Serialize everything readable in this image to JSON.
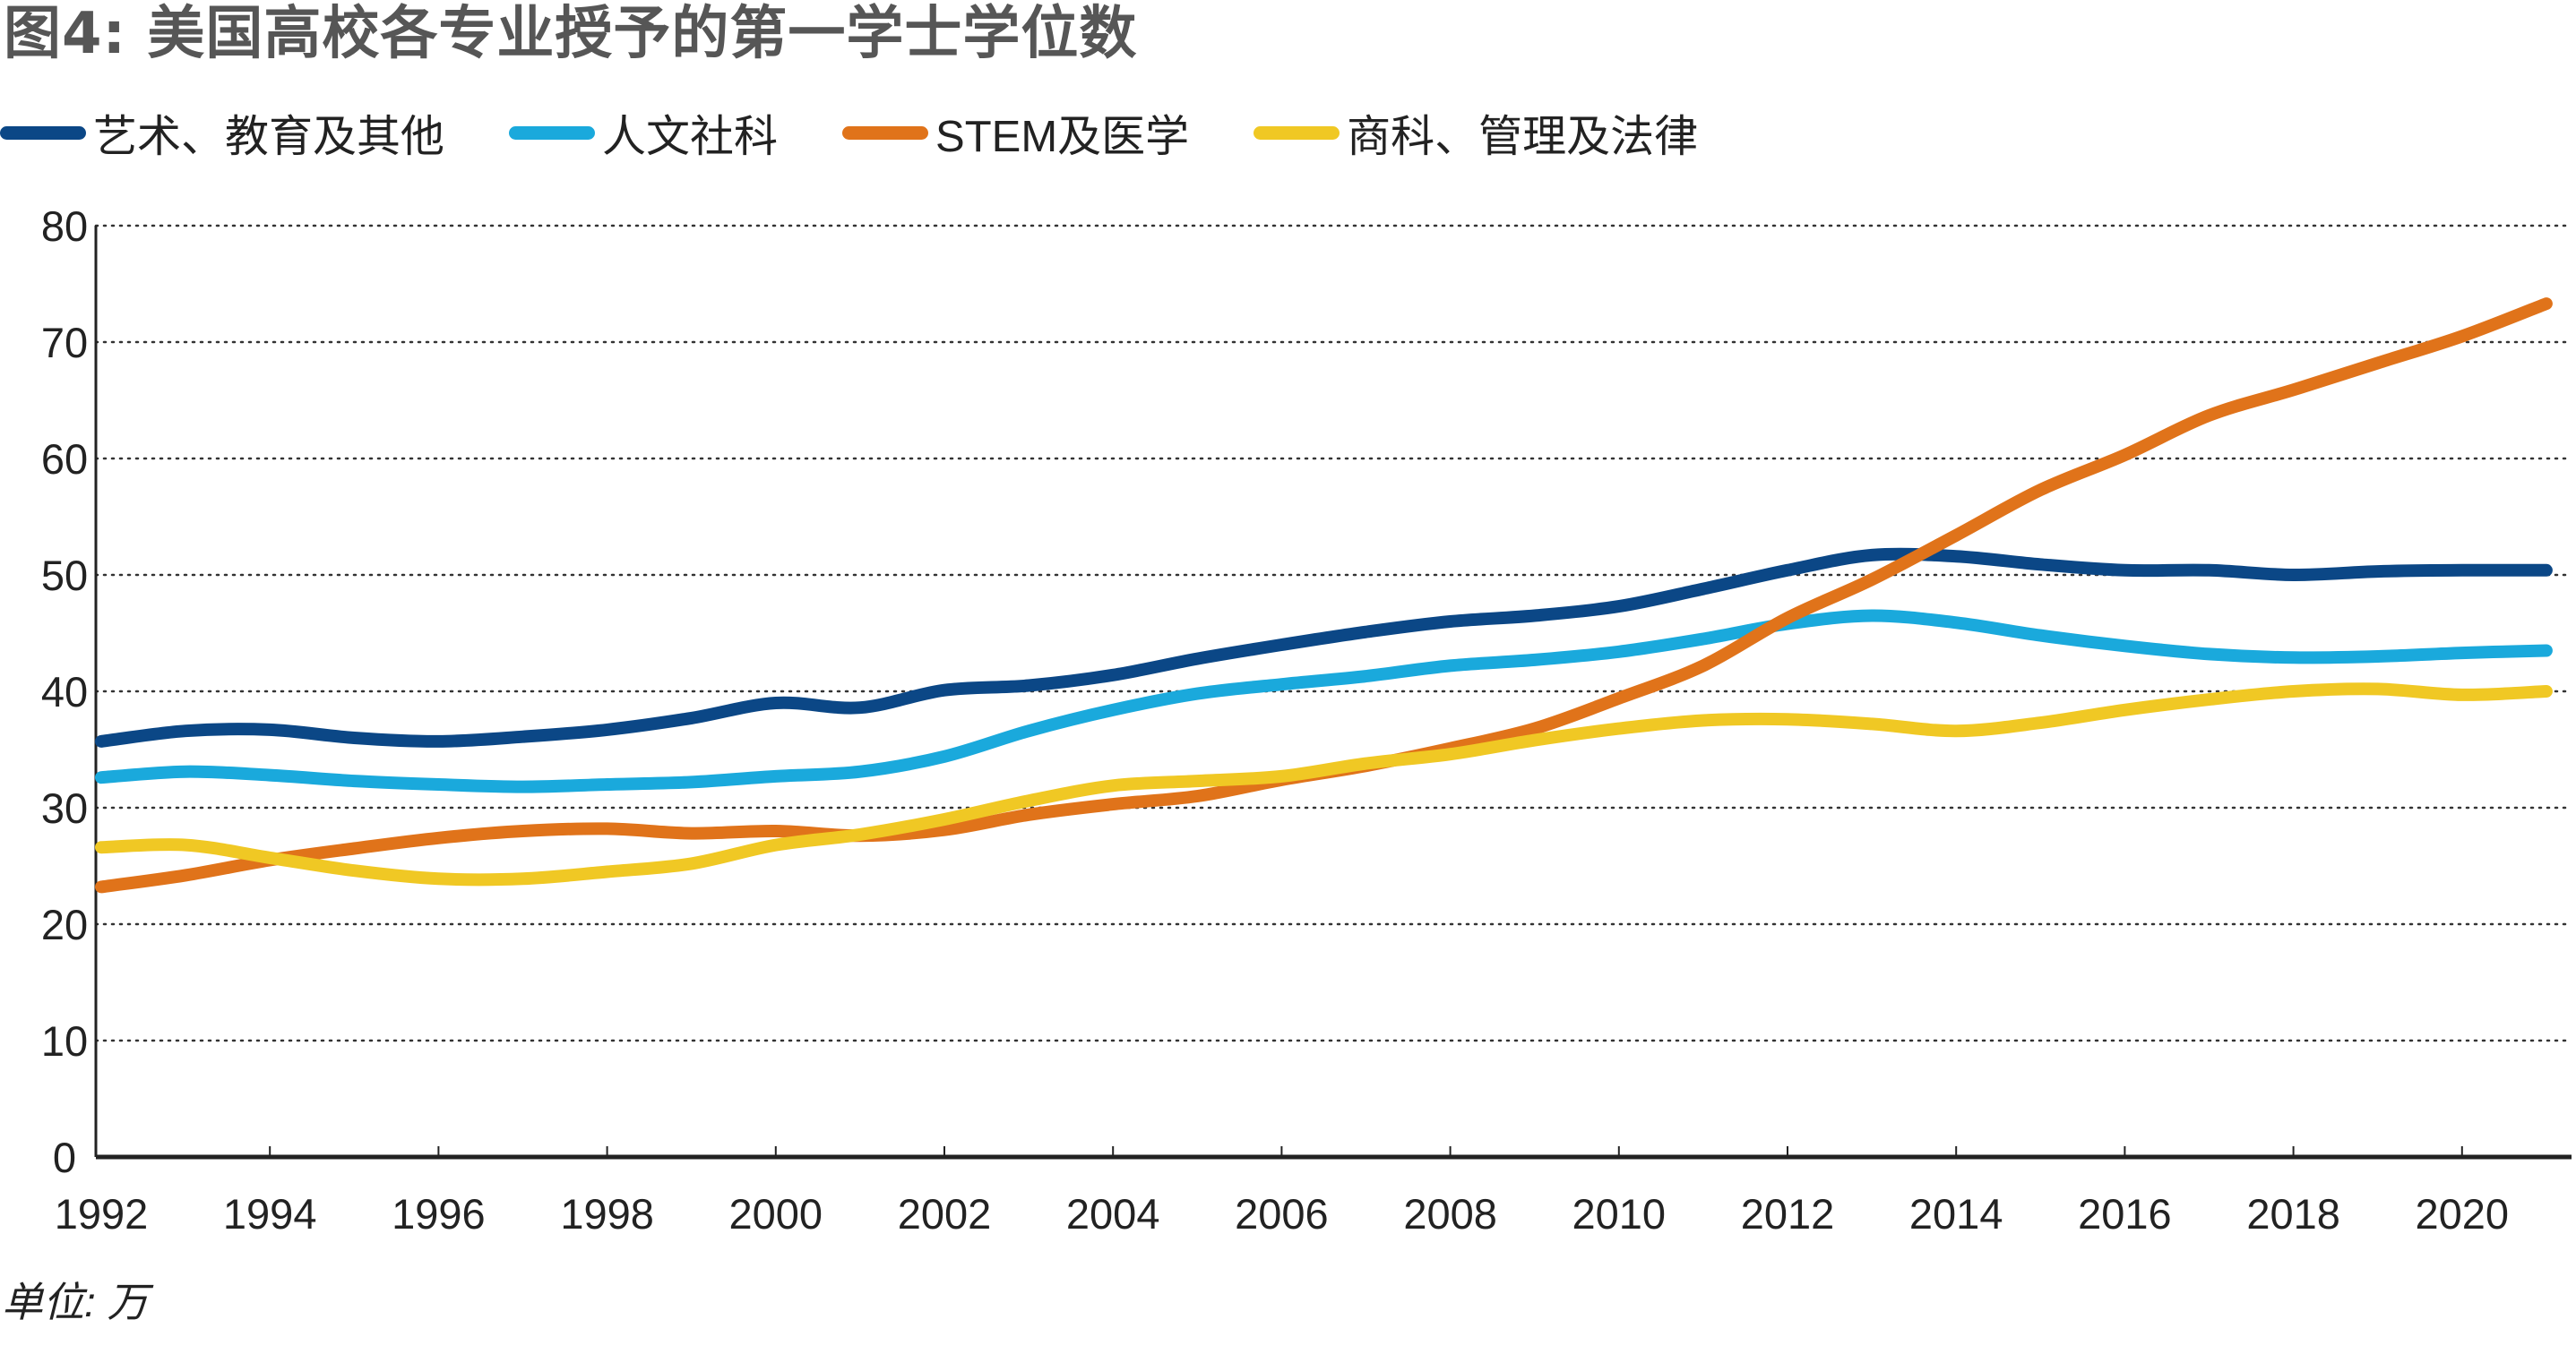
{
  "title": "图4: 美国高校各专业授予的第一学士学位数",
  "unit_label": "单位: 万",
  "chart_data": {
    "type": "line",
    "title": "图4: 美国高校各专业授予的第一学士学位数",
    "xlabel": "",
    "ylabel": "单位: 万",
    "ylim": [
      0,
      80
    ],
    "yticks": [
      0,
      10,
      20,
      30,
      40,
      50,
      60,
      70,
      80
    ],
    "xlim": [
      1992,
      2021
    ],
    "xticks": [
      1992,
      1994,
      1996,
      1998,
      2000,
      2002,
      2004,
      2006,
      2008,
      2010,
      2012,
      2014,
      2016,
      2018,
      2020
    ],
    "grid": "horizontal-dotted",
    "legend_position": "top",
    "x": [
      1992,
      1993,
      1994,
      1995,
      1996,
      1997,
      1998,
      1999,
      2000,
      2001,
      2002,
      2003,
      2004,
      2005,
      2006,
      2007,
      2008,
      2009,
      2010,
      2011,
      2012,
      2013,
      2014,
      2015,
      2016,
      2017,
      2018,
      2019,
      2020,
      2021
    ],
    "series": [
      {
        "name": "艺术、教育及其他",
        "color": "#0b4786",
        "values": [
          35.7,
          36.6,
          36.7,
          36.0,
          35.7,
          36.1,
          36.7,
          37.7,
          39.0,
          38.6,
          40.1,
          40.5,
          41.4,
          42.8,
          44.0,
          45.1,
          46.0,
          46.5,
          47.3,
          48.8,
          50.4,
          51.7,
          51.6,
          50.9,
          50.4,
          50.4,
          50.0,
          50.3,
          50.4,
          50.4
        ]
      },
      {
        "name": "人文社科",
        "color": "#1aa9dc",
        "values": [
          32.6,
          33.1,
          32.8,
          32.3,
          32.0,
          31.8,
          32.0,
          32.2,
          32.7,
          33.1,
          34.4,
          36.6,
          38.4,
          39.8,
          40.6,
          41.3,
          42.2,
          42.7,
          43.4,
          44.5,
          45.8,
          46.5,
          45.9,
          44.8,
          43.9,
          43.2,
          42.9,
          43.0,
          43.3,
          43.5
        ]
      },
      {
        "name": "STEM及医学",
        "color": "#e0731a",
        "values": [
          23.2,
          24.2,
          25.5,
          26.5,
          27.4,
          28.0,
          28.2,
          27.8,
          28.0,
          27.6,
          28.1,
          29.4,
          30.3,
          31.0,
          32.4,
          33.6,
          35.1,
          36.8,
          39.4,
          42.2,
          46.3,
          49.6,
          53.4,
          57.3,
          60.3,
          63.7,
          65.9,
          68.2,
          70.5,
          73.3
        ]
      },
      {
        "name": "商科、管理及法律",
        "color": "#f0c824",
        "values": [
          26.6,
          26.8,
          25.7,
          24.6,
          23.9,
          23.9,
          24.5,
          25.2,
          26.8,
          27.7,
          29.0,
          30.6,
          31.9,
          32.3,
          32.7,
          33.8,
          34.6,
          35.8,
          36.8,
          37.5,
          37.6,
          37.2,
          36.6,
          37.3,
          38.4,
          39.3,
          40.0,
          40.2,
          39.7,
          40.0
        ]
      }
    ]
  }
}
